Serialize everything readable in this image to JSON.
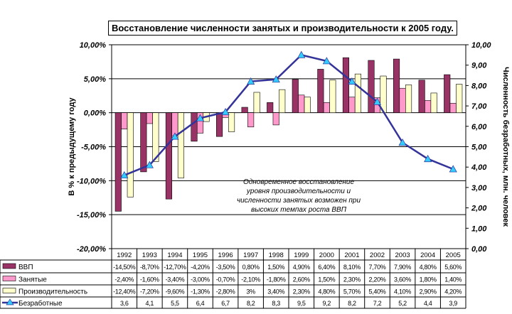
{
  "chart_data": {
    "type": "bar",
    "title": "Восстановление численности занятых и производительности к 2005 году.",
    "ylabel": "В % к предыдущему году",
    "y2label": "Численность безработных, млн. человек",
    "ylim": [
      -20,
      10
    ],
    "y2lim": [
      0,
      10
    ],
    "yticks": [
      "10,00%",
      "5,00%",
      "0,00%",
      "-5,00%",
      "-10,00%",
      "-15,00%",
      "-20,00%"
    ],
    "y2ticks": [
      "10,00",
      "9,00",
      "8,00",
      "7,00",
      "6,00",
      "5,00",
      "4,00",
      "3,00",
      "2,00",
      "1,00",
      "0,00"
    ],
    "annotation": [
      "Одновременное восстановление",
      "уровня производительности и",
      "численности занятых возможен при",
      "высоких темпах роста ВВП"
    ],
    "categories": [
      "1992",
      "1993",
      "1994",
      "1995",
      "1996",
      "1997",
      "1998",
      "1999",
      "2000",
      "2001",
      "2002",
      "2003",
      "2004",
      "2005"
    ],
    "series": [
      {
        "name": "ВВП",
        "type": "bar",
        "color": "#993366",
        "values": [
          -14.5,
          -8.7,
          -12.7,
          -4.2,
          -3.5,
          0.8,
          1.5,
          4.9,
          6.4,
          8.1,
          7.7,
          7.9,
          4.8,
          5.6
        ],
        "labels": [
          "-14,50%",
          "-8,70%",
          "-12,70%",
          "-4,20%",
          "-3,50%",
          "0,80%",
          "1,50%",
          "4,90%",
          "6,40%",
          "8,10%",
          "7,70%",
          "7,90%",
          "4,80%",
          "5,60%"
        ]
      },
      {
        "name": "Занятые",
        "type": "bar",
        "color": "#FF99CC",
        "values": [
          -2.4,
          -1.6,
          -3.4,
          -3.0,
          -0.7,
          -2.1,
          -1.8,
          2.6,
          1.5,
          2.3,
          2.2,
          3.6,
          1.8,
          1.4
        ],
        "labels": [
          "-2,40%",
          "-1,60%",
          "-3,40%",
          "-3,00%",
          "-0,70%",
          "-2,10%",
          "-1,80%",
          "2,60%",
          "1,50%",
          "2,30%",
          "2,20%",
          "3,60%",
          "1,80%",
          "1,40%"
        ]
      },
      {
        "name": "Производительность",
        "type": "bar",
        "color": "#FFFFCC",
        "values": [
          -12.4,
          -7.2,
          -9.6,
          -1.3,
          -2.8,
          3,
          3.4,
          2.3,
          4.8,
          5.7,
          5.4,
          4.1,
          2.9,
          4.2
        ],
        "labels": [
          "-12,40%",
          "-7,20%",
          "-9,60%",
          "-1,30%",
          "-2,80%",
          "3%",
          "3,40%",
          "2,30%",
          "4,80%",
          "5,70%",
          "5,40%",
          "4,10%",
          "2,90%",
          "4,20%"
        ]
      },
      {
        "name": "Безработные",
        "type": "line",
        "axis": "right",
        "color": "#333399",
        "marker_color": "#33CCFF",
        "values": [
          3.6,
          4.1,
          5.5,
          6.4,
          6.7,
          8.2,
          8.3,
          9.5,
          9.2,
          8.2,
          7.2,
          5.2,
          4.4,
          3.9
        ],
        "labels": [
          "3,6",
          "4,1",
          "5,5",
          "6,4",
          "6,7",
          "8,2",
          "8,3",
          "9,5",
          "9,2",
          "8,2",
          "7,2",
          "5,2",
          "4,4",
          "3,9"
        ]
      }
    ]
  }
}
